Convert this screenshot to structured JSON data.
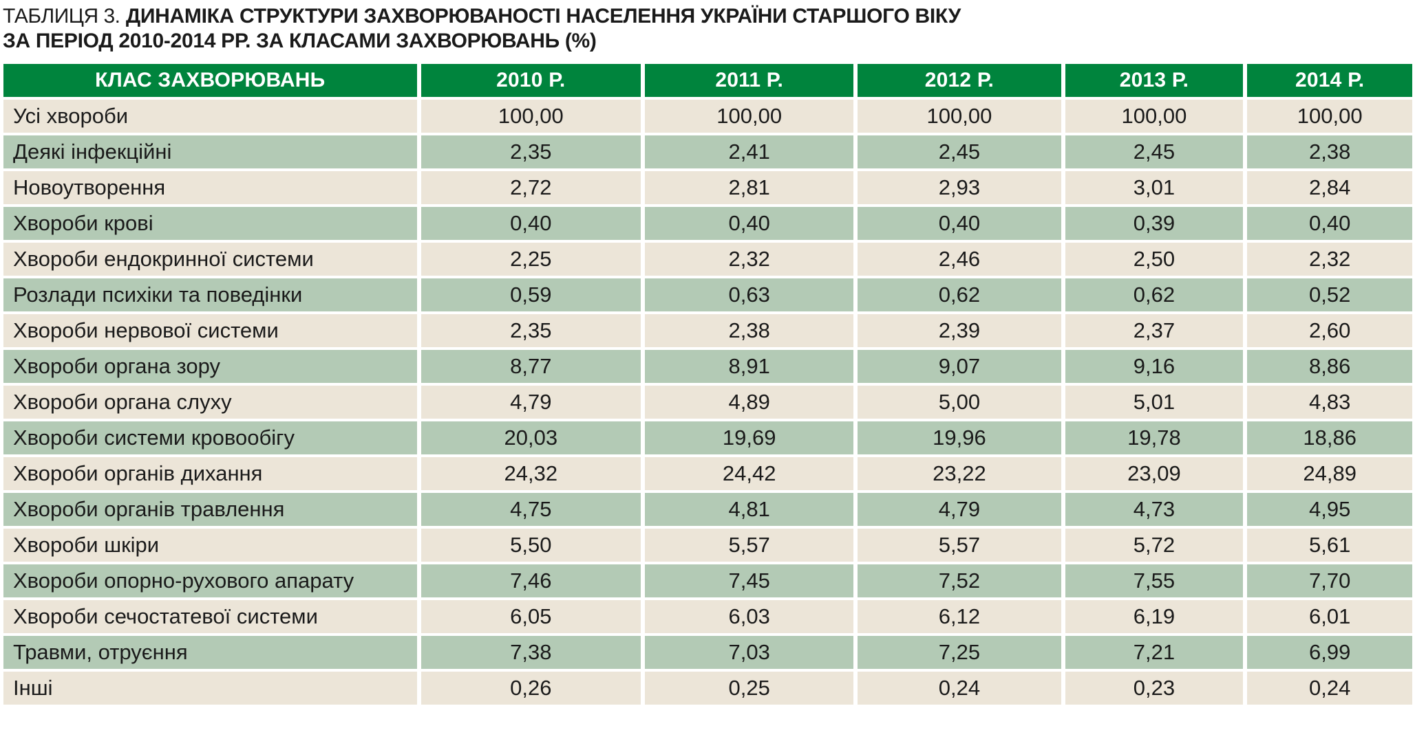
{
  "title": {
    "prefix": "ТАБЛИЦЯ 3.",
    "line1": "ДИНАМІКА СТРУКТУРИ ЗАХВОРЮВАНОСТІ НАСЕЛЕННЯ УКРАЇНИ СТАРШОГО ВІКУ",
    "line2": "ЗА ПЕРІОД 2010-2014 РР. ЗА КЛАСАМИ ЗАХВОРЮВАНЬ (%)"
  },
  "colors": {
    "header_bg": "#00843d",
    "header_text": "#ffffff",
    "row_light": "#ece5d8",
    "row_green": "#b3cab5"
  },
  "table": {
    "headers": [
      "КЛАС ЗАХВОРЮВАНЬ",
      "2010 Р.",
      "2011 Р.",
      "2012 Р.",
      "2013 Р.",
      "2014 Р."
    ],
    "rows": [
      [
        "Усі хвороби",
        "100,00",
        "100,00",
        "100,00",
        "100,00",
        "100,00"
      ],
      [
        "Деякі інфекційні",
        "2,35",
        "2,41",
        "2,45",
        "2,45",
        "2,38"
      ],
      [
        "Новоутворення",
        "2,72",
        "2,81",
        "2,93",
        "3,01",
        "2,84"
      ],
      [
        "Хвороби крові",
        "0,40",
        "0,40",
        "0,40",
        "0,39",
        "0,40"
      ],
      [
        "Хвороби ендокринної системи",
        "2,25",
        "2,32",
        "2,46",
        "2,50",
        "2,32"
      ],
      [
        "Розлади психіки та поведінки",
        "0,59",
        "0,63",
        "0,62",
        "0,62",
        "0,52"
      ],
      [
        "Хвороби нервової системи",
        "2,35",
        "2,38",
        "2,39",
        "2,37",
        "2,60"
      ],
      [
        "Хвороби органа зору",
        "8,77",
        "8,91",
        "9,07",
        "9,16",
        "8,86"
      ],
      [
        "Хвороби органа слуху",
        "4,79",
        "4,89",
        "5,00",
        "5,01",
        "4,83"
      ],
      [
        "Хвороби системи кровообігу",
        "20,03",
        "19,69",
        "19,96",
        "19,78",
        "18,86"
      ],
      [
        "Хвороби органів дихання",
        "24,32",
        "24,42",
        "23,22",
        "23,09",
        "24,89"
      ],
      [
        "Хвороби органів травлення",
        "4,75",
        "4,81",
        "4,79",
        "4,73",
        "4,95"
      ],
      [
        "Хвороби шкіри",
        "5,50",
        "5,57",
        "5,57",
        "5,72",
        "5,61"
      ],
      [
        "Хвороби опорно-рухового апарату",
        "7,46",
        "7,45",
        "7,52",
        "7,55",
        "7,70"
      ],
      [
        "Хвороби сечостатевої системи",
        "6,05",
        "6,03",
        "6,12",
        "6,19",
        "6,01"
      ],
      [
        "Травми, отруєння",
        "7,38",
        "7,03",
        "7,25",
        "7,21",
        "6,99"
      ],
      [
        "Інші",
        "0,26",
        "0,25",
        "0,24",
        "0,23",
        "0,24"
      ]
    ]
  }
}
